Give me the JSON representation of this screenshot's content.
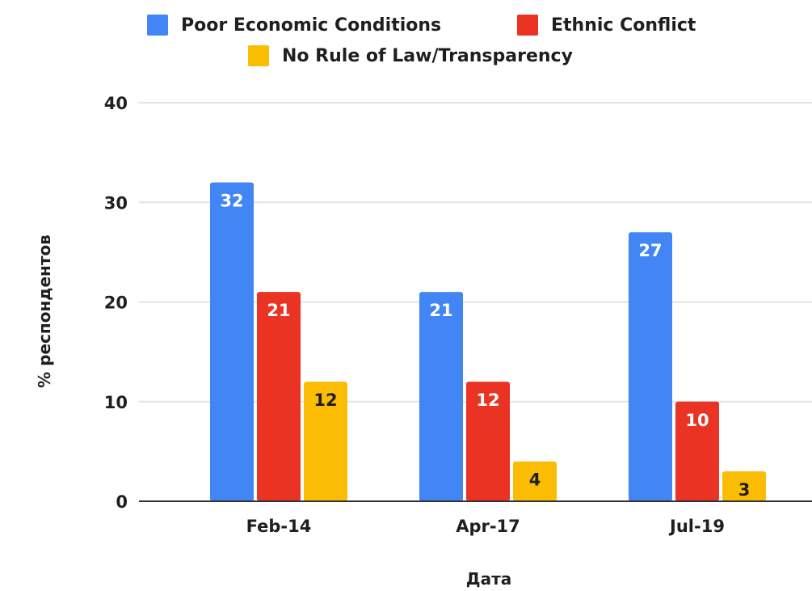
{
  "chart_data": {
    "type": "bar",
    "title": "",
    "xlabel": "Дата",
    "ylabel": "% респондентов",
    "categories": [
      "Feb-14",
      "Apr-17",
      "Jul-19"
    ],
    "series": [
      {
        "name": "Poor Economic Conditions",
        "color": "#4285f4",
        "label_color": "#ffffff",
        "values": [
          32,
          21,
          27
        ]
      },
      {
        "name": "Ethnic Conflict",
        "color": "#ea3323",
        "label_color": "#ffffff",
        "values": [
          21,
          12,
          10
        ]
      },
      {
        "name": "No Rule of Law/Transparency",
        "color": "#fbbc04",
        "label_color": "#1f1f1f",
        "values": [
          12,
          4,
          3
        ]
      }
    ],
    "ylim": [
      0,
      40
    ],
    "yticks": [
      "0",
      "10",
      "20",
      "30",
      "40"
    ],
    "grid": true,
    "legend_position": "top",
    "data_labels": true
  }
}
